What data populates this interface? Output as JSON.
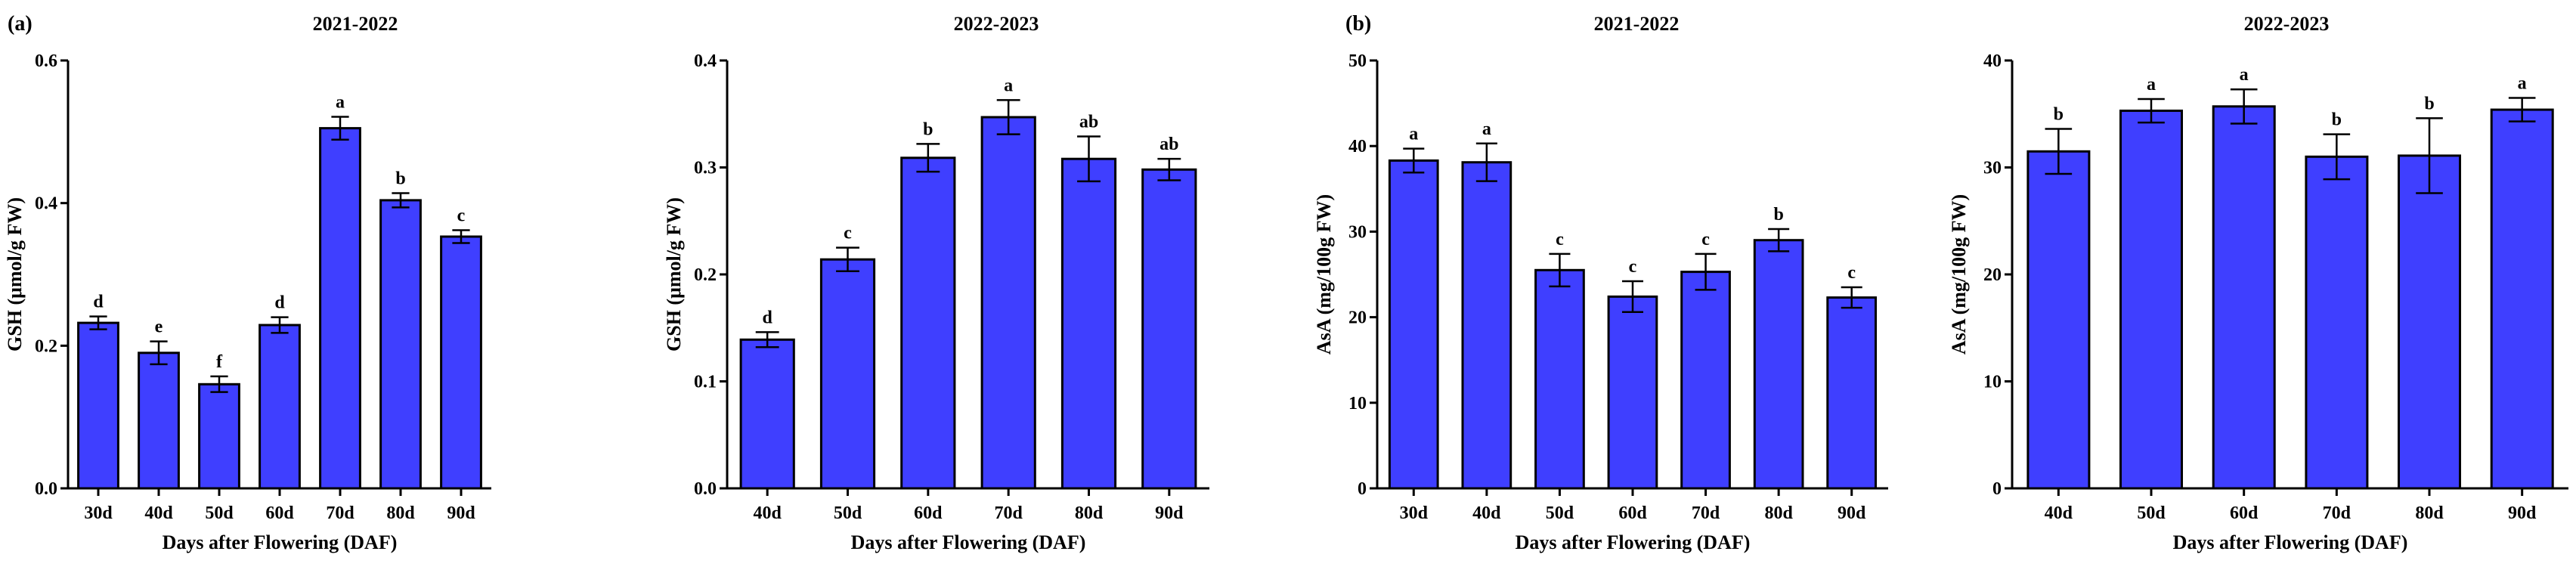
{
  "chart_data": [
    {
      "type": "bar",
      "panel_label": "(a)",
      "title": "2021-2022",
      "xlabel": "Days after Flowering (DAF)",
      "ylabel": "GSH (μmol/g FW)",
      "ylim": [
        0,
        0.6
      ],
      "yticks": [
        0.0,
        0.2,
        0.4,
        0.6
      ],
      "ytick_labels": [
        "0.0",
        "0.2",
        "0.4",
        "0.6"
      ],
      "categories": [
        "30d",
        "40d",
        "50d",
        "60d",
        "70d",
        "80d",
        "90d"
      ],
      "values": [
        0.232,
        0.19,
        0.146,
        0.229,
        0.505,
        0.404,
        0.353
      ],
      "errors": [
        0.009,
        0.016,
        0.011,
        0.011,
        0.016,
        0.01,
        0.009
      ],
      "letters": [
        "d",
        "e",
        "f",
        "d",
        "a",
        "b",
        "c"
      ],
      "bar_color": "#3f3fff"
    },
    {
      "type": "bar",
      "panel_label": "",
      "title": "2022-2023",
      "xlabel": "Days after Flowering (DAF)",
      "ylabel": "GSH (μmol/g FW)",
      "ylim": [
        0,
        0.4
      ],
      "yticks": [
        0.0,
        0.1,
        0.2,
        0.3,
        0.4
      ],
      "ytick_labels": [
        "0.0",
        "0.1",
        "0.2",
        "0.3",
        "0.4"
      ],
      "categories": [
        "40d",
        "50d",
        "60d",
        "70d",
        "80d",
        "90d"
      ],
      "values": [
        0.139,
        0.214,
        0.309,
        0.347,
        0.308,
        0.298
      ],
      "errors": [
        0.007,
        0.011,
        0.013,
        0.016,
        0.021,
        0.01
      ],
      "letters": [
        "d",
        "c",
        "b",
        "a",
        "ab",
        "ab"
      ],
      "bar_color": "#3f3fff"
    },
    {
      "type": "bar",
      "panel_label": "(b)",
      "title": "2021-2022",
      "xlabel": "Days after Flowering (DAF)",
      "ylabel": "AsA (mg/100g FW)",
      "ylim": [
        0,
        50
      ],
      "yticks": [
        0,
        10,
        20,
        30,
        40,
        50
      ],
      "ytick_labels": [
        "0",
        "10",
        "20",
        "30",
        "40",
        "50"
      ],
      "categories": [
        "30d",
        "40d",
        "50d",
        "60d",
        "70d",
        "80d",
        "90d"
      ],
      "values": [
        38.3,
        38.1,
        25.5,
        22.4,
        25.3,
        29.0,
        22.3
      ],
      "errors": [
        1.4,
        2.2,
        1.9,
        1.8,
        2.1,
        1.3,
        1.2
      ],
      "letters": [
        "a",
        "a",
        "c",
        "c",
        "c",
        "b",
        "c"
      ],
      "bar_color": "#3f3fff"
    },
    {
      "type": "bar",
      "panel_label": "",
      "title": "2022-2023",
      "xlabel": "Days after Flowering (DAF)",
      "ylabel": "AsA (mg/100g FW)",
      "ylim": [
        0,
        40
      ],
      "yticks": [
        0,
        10,
        20,
        30,
        40
      ],
      "ytick_labels": [
        "0",
        "10",
        "20",
        "30",
        "40"
      ],
      "categories": [
        "40d",
        "50d",
        "60d",
        "70d",
        "80d",
        "90d"
      ],
      "values": [
        31.5,
        35.3,
        35.7,
        31.0,
        31.1,
        35.4
      ],
      "errors": [
        2.1,
        1.1,
        1.6,
        2.1,
        3.5,
        1.1
      ],
      "letters": [
        "b",
        "a",
        "a",
        "b",
        "b",
        "a"
      ],
      "bar_color": "#3f3fff"
    }
  ]
}
